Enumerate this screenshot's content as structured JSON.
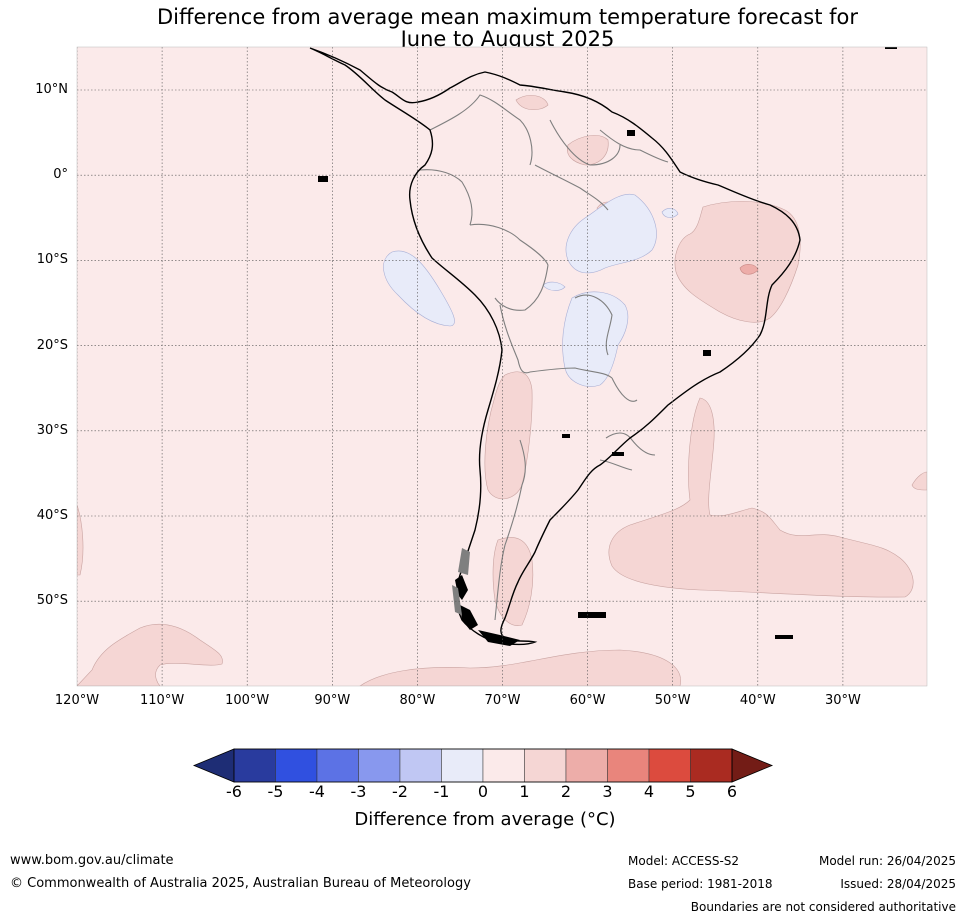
{
  "title_line1": "Difference from average mean maximum temperature forecast for",
  "title_line2": "June to August 2025",
  "map": {
    "lat_labels": [
      "10°N",
      "0°",
      "10°S",
      "20°S",
      "30°S",
      "40°S",
      "50°S"
    ],
    "lon_labels": [
      "120°W",
      "110°W",
      "100°W",
      "90°W",
      "80°W",
      "70°W",
      "60°W",
      "50°W",
      "40°W",
      "30°W"
    ],
    "colors": {
      "background_anomaly_0_to_1": "#fbeaea",
      "anomaly_1_to_2": "#f5d6d4",
      "anomaly_2_to_3": "#edada9",
      "anomaly_minus1_to_0": "#e8ebf9",
      "coastline": "#000000",
      "borders": "#7f7f7f"
    }
  },
  "colorbar": {
    "ticks": [
      "-6",
      "-5",
      "-4",
      "-3",
      "-2",
      "-1",
      "0",
      "1",
      "2",
      "3",
      "4",
      "5",
      "6"
    ],
    "colors": [
      "#293b9e",
      "#3050e0",
      "#5c72e5",
      "#8898ee",
      "#c0c7f3",
      "#e8ebf9",
      "#fbeaea",
      "#f5d6d4",
      "#edada9",
      "#e9857c",
      "#dc4b3e",
      "#aa2b21"
    ],
    "under_color": "#1e2d75",
    "over_color": "#731c16",
    "label": "Difference from average (°C)"
  },
  "footer": {
    "website": "www.bom.gov.au/climate",
    "copyright": "© Commonwealth of Australia 2025, Australian Bureau of Meteorology",
    "model": "Model: ACCESS-S2",
    "base_period": "Base period: 1981-2018",
    "model_run": "Model run: 26/04/2025",
    "issued": "Issued: 28/04/2025",
    "boundaries_note": "Boundaries are not considered authoritative"
  }
}
